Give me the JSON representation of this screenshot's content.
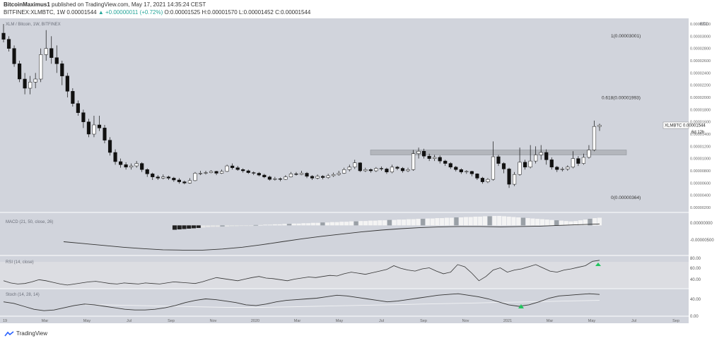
{
  "header": {
    "author": "BitcoinMaximus1",
    "published_text": "published on TradingView.com, May 17, 2021 14:35:24 CEST",
    "symbol_line_prefix": "BITFINEX:XLMBTC, 1W",
    "last_price": "0.00001544",
    "change": "▲ +0.00000011 (+0.72%)",
    "ohlc": "O:0.00001525 H:0.00001570 L:0.00001452 C:0.00001544"
  },
  "footer": {
    "brand": "TradingView"
  },
  "chart_data": {
    "type": "candlestick",
    "title": "XLM / Bitcoin, 1W, BITFINEX",
    "y_unit_label": "BTC",
    "ylim": [
      2e-06,
      3.2e-05
    ],
    "y_ticks": [
      "0.00003200",
      "0.00003000",
      "0.00002800",
      "0.00002600",
      "0.00002400",
      "0.00002200",
      "0.00002000",
      "0.00001800",
      "0.00001600",
      "0.00001400",
      "0.00001200",
      "0.00001000",
      "0.00000800",
      "0.00000600",
      "0.00000400",
      "0.00000200"
    ],
    "x_tick_labels": [
      "19",
      "Mar",
      "May",
      "Jul",
      "Sep",
      "Nov",
      "2020",
      "Mar",
      "May",
      "Jul",
      "Sep",
      "Nov",
      "2021",
      "Mar",
      "May",
      "Jul",
      "Sep"
    ],
    "current_price_label": "XLMBTC  0.00001544",
    "current_countdown": "6d 12h",
    "current_price": 1.544e-05,
    "fib_levels": [
      {
        "label": "1(0.00003001)",
        "value": 3.001e-05
      },
      {
        "label": "0.618(0.00001993)",
        "value": 1.993e-05
      },
      {
        "label": "0(0.00000364)",
        "value": 3.64e-06
      }
    ],
    "resistance_zone": {
      "from": 1.06e-05,
      "to": 1.14e-05
    },
    "candles": [
      [
        3.05e-05,
        2.95e-05,
        3.2e-05,
        2.9e-05
      ],
      [
        2.95e-05,
        2.8e-05,
        3e-05,
        2.75e-05
      ],
      [
        2.8e-05,
        2.55e-05,
        2.85e-05,
        2.5e-05
      ],
      [
        2.55e-05,
        2.3e-05,
        2.6e-05,
        2.25e-05
      ],
      [
        2.3e-05,
        2.15e-05,
        2.4e-05,
        2.05e-05
      ],
      [
        2.15e-05,
        2.25e-05,
        2.35e-05,
        2.05e-05
      ],
      [
        2.25e-05,
        2.3e-05,
        2.4e-05,
        2.15e-05
      ],
      [
        2.3e-05,
        2.7e-05,
        2.8e-05,
        2.25e-05
      ],
      [
        2.7e-05,
        2.8e-05,
        3.1e-05,
        2.6e-05
      ],
      [
        2.8e-05,
        2.65e-05,
        3e-05,
        2.55e-05
      ],
      [
        2.65e-05,
        2.55e-05,
        2.85e-05,
        2.4e-05
      ],
      [
        2.55e-05,
        2.35e-05,
        2.6e-05,
        2.2e-05
      ],
      [
        2.35e-05,
        2.1e-05,
        2.4e-05,
        2e-05
      ],
      [
        2.1e-05,
        1.9e-05,
        2.15e-05,
        1.85e-05
      ],
      [
        1.9e-05,
        1.75e-05,
        1.95e-05,
        1.7e-05
      ],
      [
        1.75e-05,
        1.6e-05,
        1.8e-05,
        1.5e-05
      ],
      [
        1.6e-05,
        1.4e-05,
        1.65e-05,
        1.35e-05
      ],
      [
        1.4e-05,
        1.55e-05,
        1.7e-05,
        1.35e-05
      ],
      [
        1.55e-05,
        1.5e-05,
        1.7e-05,
        1.45e-05
      ],
      [
        1.5e-05,
        1.3e-05,
        1.55e-05,
        1.25e-05
      ],
      [
        1.3e-05,
        1.1e-05,
        1.35e-05,
        1.05e-05
      ],
      [
        1.1e-05,
        9.5e-06,
        1.15e-05,
        9e-06
      ],
      [
        9.5e-06,
        9e-06,
        1e-05,
        8.5e-06
      ],
      [
        9e-06,
        8.6e-06,
        9.4e-06,
        8.2e-06
      ],
      [
        8.6e-06,
        8.8e-06,
        9.2e-06,
        8.2e-06
      ],
      [
        8.8e-06,
        9.2e-06,
        9.6e-06,
        8.5e-06
      ],
      [
        9.2e-06,
        8.2e-06,
        9.4e-06,
        7.8e-06
      ],
      [
        8.2e-06,
        7.5e-06,
        8.4e-06,
        7e-06
      ],
      [
        7.5e-06,
        7e-06,
        7.7e-06,
        6.5e-06
      ],
      [
        7e-06,
        6.8e-06,
        7.3e-06,
        6.5e-06
      ],
      [
        6.8e-06,
        7e-06,
        7.4e-06,
        6.6e-06
      ],
      [
        7e-06,
        6.8e-06,
        7.2e-06,
        6.5e-06
      ],
      [
        6.8e-06,
        6.5e-06,
        7e-06,
        6.2e-06
      ],
      [
        6.5e-06,
        6.2e-06,
        6.8e-06,
        5.9e-06
      ],
      [
        6.2e-06,
        6e-06,
        6.4e-06,
        5.8e-06
      ],
      [
        6e-06,
        6.4e-06,
        6.8e-06,
        5.9e-06
      ],
      [
        6.4e-06,
        7.6e-06,
        7.8e-06,
        6.3e-06
      ],
      [
        7.6e-06,
        7.6e-06,
        8e-06,
        7.3e-06
      ],
      [
        7.6e-06,
        7.7e-06,
        8e-06,
        7.4e-06
      ],
      [
        7.7e-06,
        7.9e-06,
        8.1e-06,
        7.6e-06
      ],
      [
        7.9e-06,
        7.6e-06,
        8e-06,
        7.3e-06
      ],
      [
        7.6e-06,
        7.9e-06,
        8.2e-06,
        7.5e-06
      ],
      [
        7.9e-06,
        8.8e-06,
        9e-06,
        7.8e-06
      ],
      [
        8.8e-06,
        8.5e-06,
        9.2e-06,
        8.2e-06
      ],
      [
        8.5e-06,
        8.2e-06,
        8.8e-06,
        8e-06
      ],
      [
        8.2e-06,
        8e-06,
        8.4e-06,
        7.7e-06
      ],
      [
        8e-06,
        7.7e-06,
        8.2e-06,
        7.5e-06
      ],
      [
        7.7e-06,
        7.6e-06,
        7.9e-06,
        7.3e-06
      ],
      [
        7.6e-06,
        7.3e-06,
        7.8e-06,
        7.1e-06
      ],
      [
        7.3e-06,
        7e-06,
        7.5e-06,
        6.8e-06
      ],
      [
        7e-06,
        6.6e-06,
        7.2e-06,
        6.4e-06
      ],
      [
        6.6e-06,
        6.7e-06,
        7e-06,
        6.4e-06
      ],
      [
        6.7e-06,
        6.6e-06,
        6.9e-06,
        6.3e-06
      ],
      [
        6.6e-06,
        7e-06,
        7.3e-06,
        6.5e-06
      ],
      [
        7e-06,
        7.5e-06,
        7.8e-06,
        6.9e-06
      ],
      [
        7.5e-06,
        7.4e-06,
        7.8e-06,
        7.2e-06
      ],
      [
        7.4e-06,
        7.6e-06,
        8e-06,
        7.3e-06
      ],
      [
        7.6e-06,
        7.1e-06,
        7.8e-06,
        6.8e-06
      ],
      [
        7.1e-06,
        6.8e-06,
        7.3e-06,
        6.5e-06
      ],
      [
        6.8e-06,
        7.1e-06,
        7.4e-06,
        6.6e-06
      ],
      [
        7.1e-06,
        6.9e-06,
        7.3e-06,
        6.6e-06
      ],
      [
        6.9e-06,
        7.2e-06,
        7.5e-06,
        6.7e-06
      ],
      [
        7.2e-06,
        7.4e-06,
        7.7e-06,
        7e-06
      ],
      [
        7.4e-06,
        7.6e-06,
        8e-06,
        7.2e-06
      ],
      [
        7.6e-06,
        8.2e-06,
        8.5e-06,
        7.5e-06
      ],
      [
        8.2e-06,
        8.6e-06,
        9e-06,
        7.9e-06
      ],
      [
        8.6e-06,
        9.3e-06,
        9.8e-06,
        8.3e-06
      ],
      [
        9.3e-06,
        8e-06,
        9.4e-06,
        7.8e-06
      ],
      [
        8e-06,
        8.2e-06,
        8.5e-06,
        7.8e-06
      ],
      [
        8.2e-06,
        8e-06,
        8.4e-06,
        7.7e-06
      ],
      [
        8e-06,
        8.4e-06,
        8.6e-06,
        7.8e-06
      ],
      [
        8.4e-06,
        8.3e-06,
        8.7e-06,
        8e-06
      ],
      [
        8.3e-06,
        7.8e-06,
        8.5e-06,
        7.5e-06
      ],
      [
        7.8e-06,
        8.6e-06,
        9e-06,
        7.6e-06
      ],
      [
        8.6e-06,
        8.4e-06,
        8.8e-06,
        8.1e-06
      ],
      [
        8.4e-06,
        8e-06,
        8.6e-06,
        7.7e-06
      ],
      [
        8e-06,
        8.2e-06,
        8.5e-06,
        7.8e-06
      ],
      [
        8.2e-06,
        1.08e-05,
        1.14e-05,
        8e-06
      ],
      [
        1.08e-05,
        1.12e-05,
        1.18e-05,
        1e-05
      ],
      [
        1.12e-05,
        1.04e-05,
        1.16e-05,
        1e-05
      ],
      [
        1.04e-05,
        1e-05,
        1.08e-05,
        9.6e-06
      ],
      [
        1e-05,
        1.02e-05,
        1.06e-05,
        9.6e-06
      ],
      [
        1.02e-05,
        9.6e-06,
        1.05e-05,
        9.2e-06
      ],
      [
        9.6e-06,
        9.2e-06,
        9.8e-06,
        8.8e-06
      ],
      [
        9.2e-06,
        8.6e-06,
        9.4e-06,
        8.3e-06
      ],
      [
        8.6e-06,
        8.2e-06,
        8.8e-06,
        7.9e-06
      ],
      [
        8.2e-06,
        7.8e-06,
        8.4e-06,
        7.5e-06
      ],
      [
        7.8e-06,
        7.9e-06,
        8.1e-06,
        7.5e-06
      ],
      [
        7.9e-06,
        7.5e-06,
        8e-06,
        7.1e-06
      ],
      [
        7.5e-06,
        6.8e-06,
        7.6e-06,
        6.5e-06
      ],
      [
        6.8e-06,
        6.2e-06,
        7e-06,
        5.9e-06
      ],
      [
        6.2e-06,
        6.6e-06,
        6.8e-06,
        6e-06
      ],
      [
        6.6e-06,
        1.03e-05,
        1.28e-05,
        6.4e-06
      ],
      [
        1.03e-05,
        9.2e-06,
        1.06e-05,
        8.8e-06
      ],
      [
        9.2e-06,
        8.3e-06,
        9.4e-06,
        7.6e-06
      ],
      [
        8.3e-06,
        5.8e-06,
        8.5e-06,
        5.2e-06
      ],
      [
        5.8e-06,
        7.4e-06,
        7.8e-06,
        5.5e-06
      ],
      [
        7.4e-06,
        9.4e-06,
        1.18e-05,
        7.2e-06
      ],
      [
        9.4e-06,
        8.6e-06,
        9.8e-06,
        8.2e-06
      ],
      [
        8.6e-06,
        9.6e-06,
        1.22e-05,
        8.4e-06
      ],
      [
        9.6e-06,
        1.06e-05,
        1.2e-05,
        9.2e-06
      ],
      [
        1.06e-05,
        1.1e-05,
        1.22e-05,
        9.8e-06
      ],
      [
        1.1e-05,
        9.8e-06,
        1.15e-05,
        9e-06
      ],
      [
        9.8e-06,
        8.6e-06,
        1.02e-05,
        8.2e-06
      ],
      [
        8.6e-06,
        8.2e-06,
        8.8e-06,
        7.8e-06
      ],
      [
        8.2e-06,
        8.3e-06,
        8.6e-06,
        7.9e-06
      ],
      [
        8.3e-06,
        8.6e-06,
        8.9e-06,
        8e-06
      ],
      [
        8.6e-06,
        1e-05,
        1.12e-05,
        8.4e-06
      ],
      [
        1e-05,
        9.2e-06,
        1.04e-05,
        8.8e-06
      ],
      [
        9.2e-06,
        1.02e-05,
        1.08e-05,
        9e-06
      ],
      [
        1.02e-05,
        1.14e-05,
        1.22e-05,
        1e-05
      ],
      [
        1.14e-05,
        1.525e-05,
        1.62e-05,
        1.12e-05
      ],
      [
        1.525e-05,
        1.544e-05,
        1.57e-05,
        1.452e-05
      ]
    ],
    "macd": {
      "label": "MACD (21, 50, close, 26)",
      "ticks": [
        "0.00000000",
        "-0.00000500"
      ],
      "ylim": [
        -7.5e-06,
        2.2e-06
      ],
      "line": [
        -4.5e-06,
        -5e-06,
        -5.5e-06,
        -6e-06,
        -6.4e-06,
        -6.7e-06,
        -6.8e-06,
        -6.8e-06,
        -6.5e-06,
        -6e-06,
        -5.3e-06,
        -4.5e-06,
        -3.7e-06,
        -3e-06,
        -2.4e-06,
        -1.8e-06,
        -1.3e-06,
        -9e-07,
        -6e-07,
        -4e-07,
        -3e-07,
        -3e-07,
        -4e-07,
        -3e-07,
        -2e-07,
        0.0,
        2e-07,
        4e-07
      ],
      "histogram_start_index": 32,
      "histogram": [
        -1.2e-06,
        -1.1e-06,
        -1e-06,
        -9e-07,
        -8e-07,
        -7e-07,
        -6e-07,
        -5e-07,
        -4e-07,
        -4e-07,
        -3e-07,
        -3e-07,
        -2e-07,
        -2e-07,
        -1e-07,
        -1e-07,
        0.0,
        1e-07,
        1e-07,
        2e-07,
        2e-07,
        3e-07,
        3e-07,
        4e-07,
        4e-07,
        5e-07,
        5e-07,
        6e-07,
        6e-07,
        7e-07,
        7e-07,
        8e-07,
        8e-07,
        9e-07,
        9e-07,
        1e-06,
        1e-06,
        1.1e-06,
        1.1e-06,
        1.2e-06,
        1.2e-06,
        1.3e-06,
        1.3e-06,
        1.4e-06,
        1.4e-06,
        1.5e-06,
        1.5e-06,
        1.6e-06,
        1.6e-06,
        1.7e-06,
        1.7e-06,
        1.8e-06,
        1.8e-06,
        1.9e-06,
        1.9e-06,
        2e-06,
        2e-06,
        2.1e-06,
        2.1e-06,
        2.2e-06,
        2.2e-06,
        2.3e-06,
        2.3e-06,
        2.4e-06,
        2.4e-06,
        2.5e-06,
        2.5e-06,
        2.6e-06,
        2.6e-06,
        2.5e-06,
        2.4e-06,
        2.3e-06,
        2.2e-06,
        2.1e-06,
        2e-06,
        1.9e-06,
        1.8e-06,
        1.7e-06,
        1.6e-06,
        1.5e-06,
        1.4e-06,
        1.3e-06,
        1.2e-06,
        1.1e-06,
        1.2e-06,
        1.4e-06,
        1.6e-06,
        1.8e-06,
        2e-06,
        2.1e-06
      ]
    },
    "rsi": {
      "label": "RSI (14, close)",
      "ticks": [
        "80.00",
        "60.00",
        "40.00"
      ],
      "ylim": [
        30,
        85
      ],
      "values": [
        42,
        38,
        36,
        37,
        40,
        44,
        42,
        39,
        36,
        34,
        36,
        38,
        40,
        41,
        39,
        37,
        36,
        38,
        37,
        36,
        38,
        37,
        36,
        38,
        40,
        39,
        38,
        37,
        40,
        44,
        48,
        46,
        44,
        42,
        45,
        48,
        50,
        47,
        46,
        44,
        42,
        45,
        47,
        49,
        48,
        50,
        52,
        51,
        55,
        58,
        56,
        54,
        57,
        60,
        63,
        70,
        65,
        62,
        60,
        64,
        66,
        60,
        55,
        58,
        72,
        68,
        56,
        42,
        50,
        62,
        66,
        58,
        62,
        64,
        68,
        72,
        66,
        60,
        58,
        62,
        64,
        67,
        70,
        78,
        80
      ]
    },
    "stoch": {
      "label": "Stoch (14, 28, 14)",
      "ticks": [
        "40.00",
        "0.00"
      ],
      "ylim": [
        -5,
        60
      ],
      "k": [
        30,
        26,
        18,
        10,
        6,
        8,
        14,
        20,
        24,
        22,
        18,
        14,
        10,
        8,
        8,
        10,
        14,
        20,
        28,
        34,
        38,
        36,
        32,
        28,
        22,
        20,
        24,
        30,
        34,
        36,
        38,
        40,
        44,
        48,
        46,
        42,
        38,
        34,
        30,
        32,
        36,
        40,
        44,
        48,
        50,
        52,
        48,
        44,
        38,
        30,
        22,
        18,
        22,
        30,
        40,
        46,
        48,
        50,
        52,
        50
      ],
      "d": [
        22,
        22,
        21,
        20,
        19,
        18,
        17,
        16,
        15,
        15,
        15,
        16,
        17,
        18,
        19,
        20,
        21,
        22,
        23,
        24,
        25,
        26,
        27,
        28,
        29,
        30,
        31,
        32,
        33,
        34
      ]
    }
  }
}
